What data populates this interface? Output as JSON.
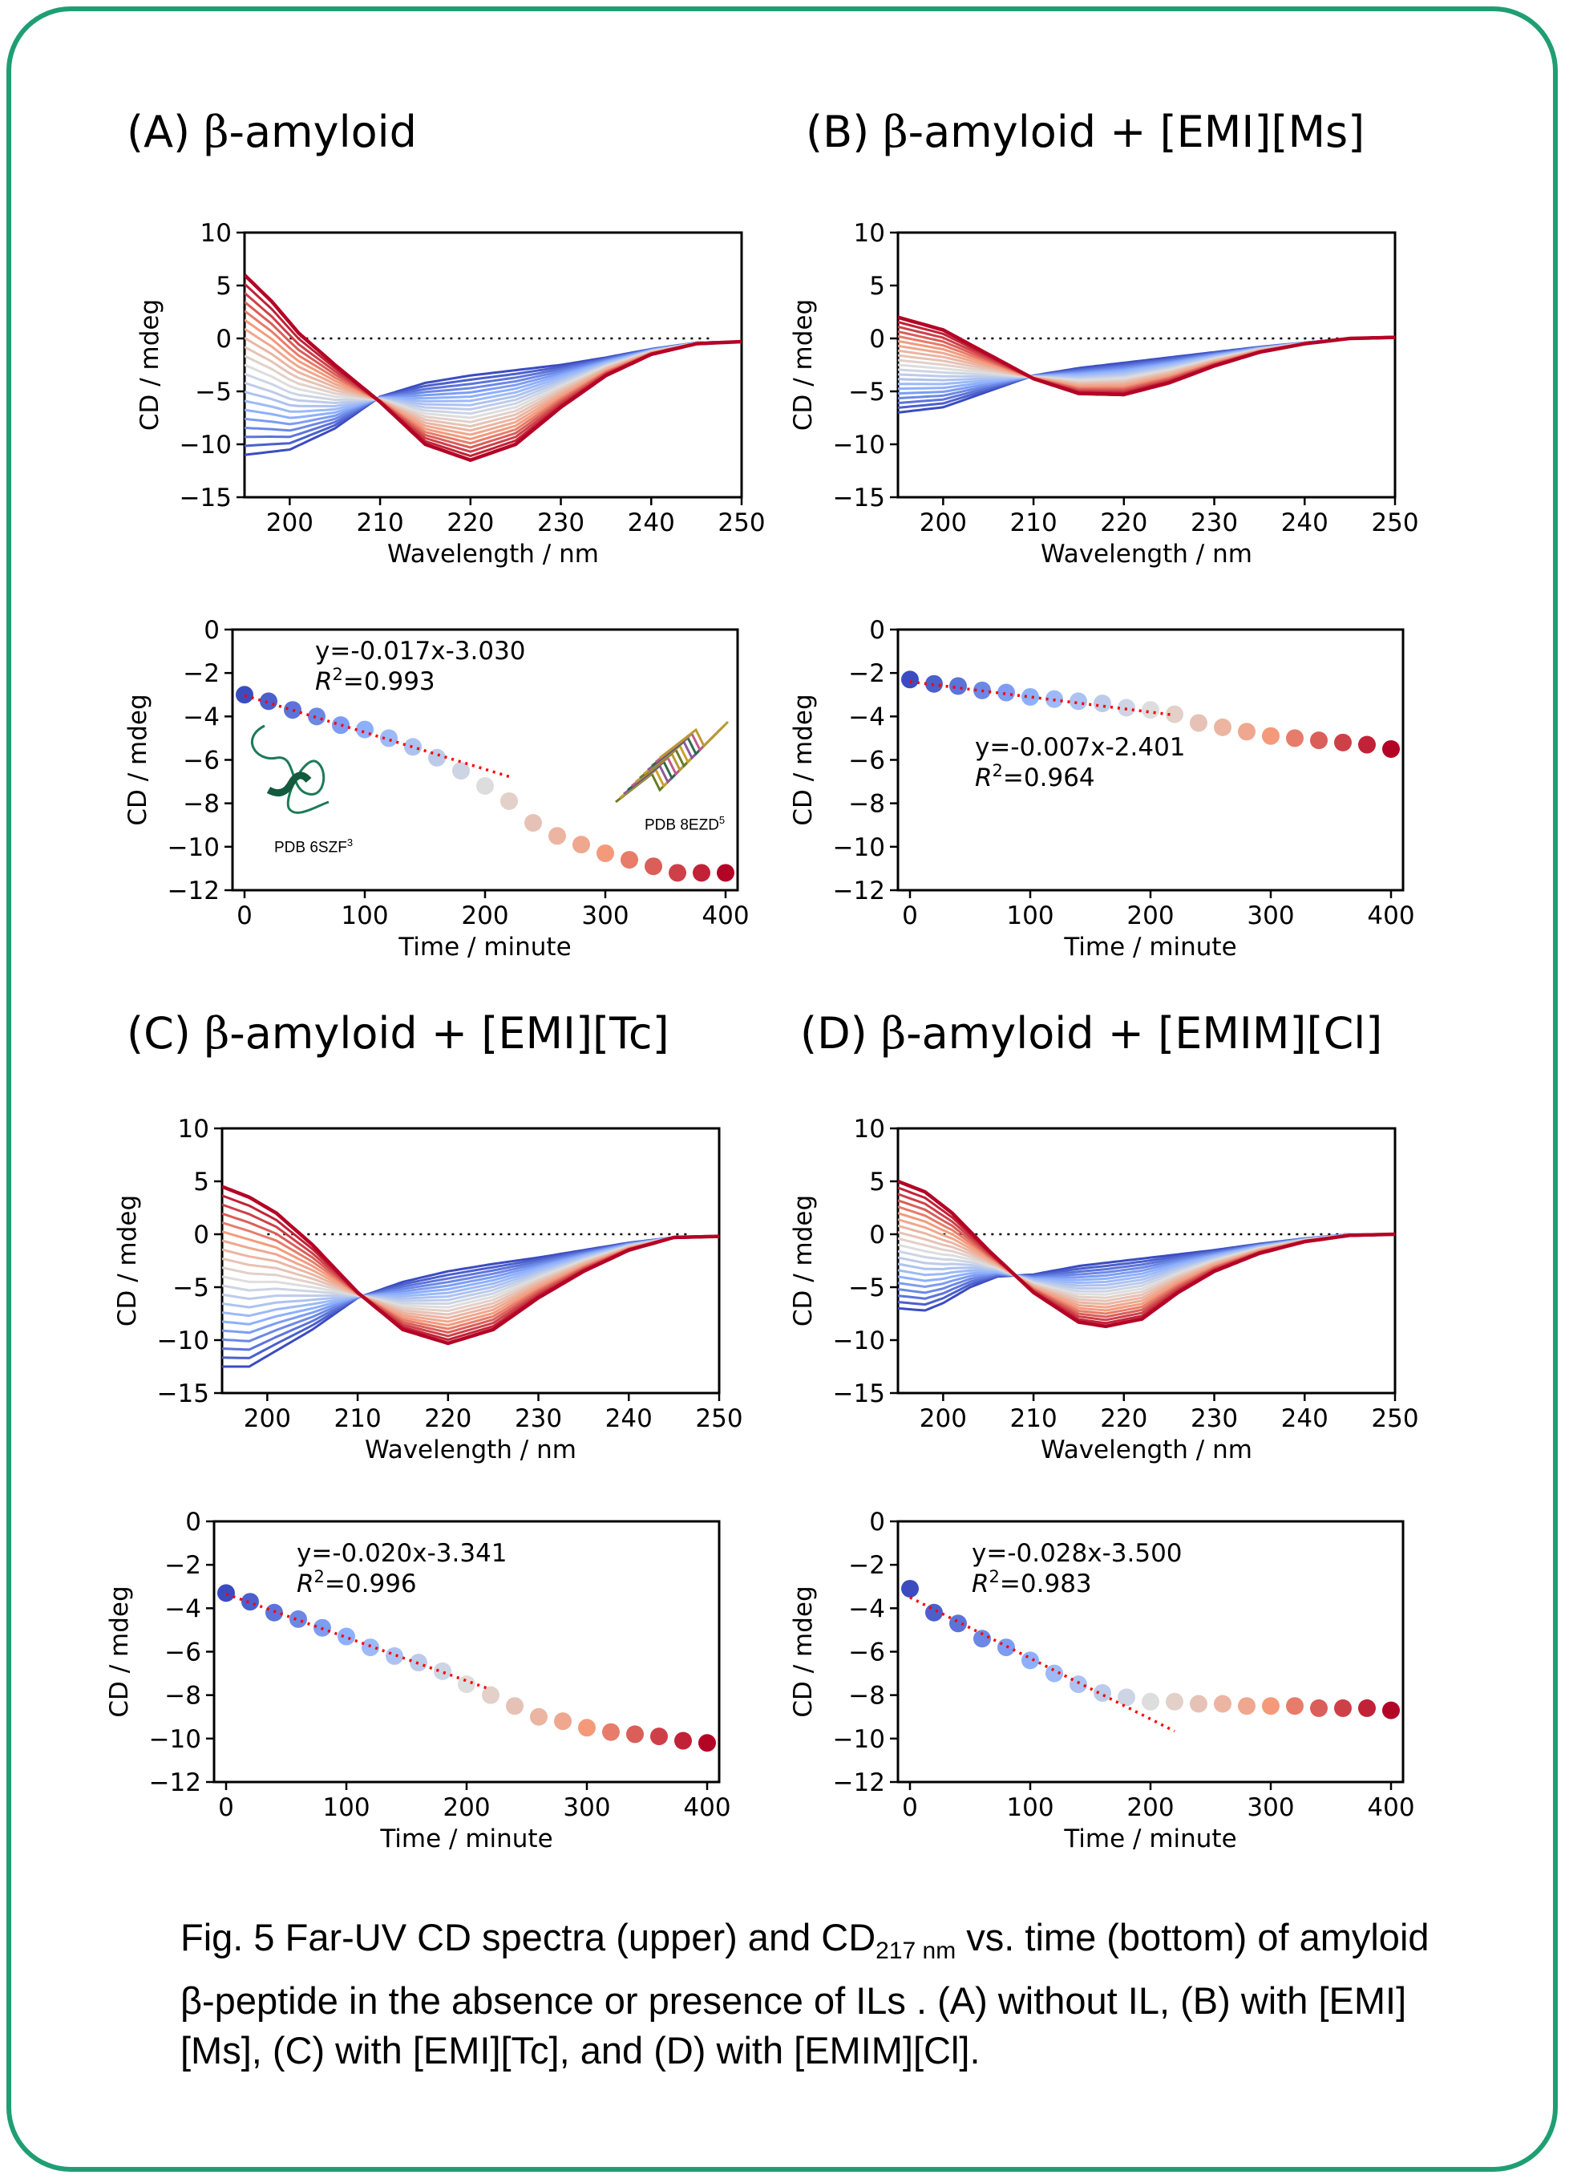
{
  "panels": {
    "A": {
      "letter": "(A) ",
      "beta": "β",
      "rest": "-amyloid"
    },
    "B": {
      "letter": "(B) ",
      "beta": "β",
      "rest": "-amyloid + [EMI][Ms]"
    },
    "C": {
      "letter": "(C) ",
      "beta": "β",
      "rest": "-amyloid + [EMI][Tc]"
    },
    "D": {
      "letter": "(D) ",
      "beta": "β",
      "rest": "-amyloid + [EMIM][Cl]"
    }
  },
  "insets": {
    "left_label": "PDB 6SZF",
    "left_sup": "3",
    "right_label": "PDB 8EZD",
    "right_sup": "5"
  },
  "caption": {
    "part1": "Fig. 5 Far-UV CD spectra (upper) and CD",
    "sub": "217 nm",
    "part2": " vs. time  (bottom) of amyloid β-peptide in the absence or presence of ILs . (A) without IL, (B) with [EMI][Ms], (C) with [EMI][Tc], and (D) with [EMIM][Cl]."
  },
  "colors": {
    "frame": "#1f9e74",
    "blue": "#3b4cc0",
    "white": "#dddddd",
    "red": "#b40426",
    "fit": "#ff0000"
  },
  "chart_data": [
    {
      "id": "A-spectra",
      "type": "line",
      "xlabel": "Wavelength / nm",
      "ylabel": "CD / mdeg",
      "xlim": [
        195,
        250
      ],
      "ylim": [
        -15,
        10
      ],
      "xticks": [
        200,
        210,
        220,
        230,
        240,
        250
      ],
      "yticks": [
        -15,
        -10,
        -5,
        0,
        5,
        10
      ],
      "curves": 21,
      "first": {
        "x": [
          195,
          200,
          205,
          210,
          215,
          220,
          225,
          230,
          235,
          240,
          245,
          250
        ],
        "y": [
          -11.0,
          -10.5,
          -8.5,
          -5.5,
          -4.2,
          -3.5,
          -3.0,
          -2.5,
          -1.8,
          -1.0,
          -0.4,
          -0.3
        ]
      },
      "last": {
        "x": [
          195,
          198,
          201,
          205,
          210,
          215,
          220,
          225,
          230,
          235,
          240,
          245,
          250
        ],
        "y": [
          6.0,
          3.5,
          0.5,
          -2.5,
          -6.0,
          -10.0,
          -11.5,
          -10.0,
          -6.5,
          -3.5,
          -1.5,
          -0.5,
          -0.3
        ]
      }
    },
    {
      "id": "B-spectra",
      "type": "line",
      "xlabel": "Wavelength / nm",
      "ylabel": "CD / mdeg",
      "xlim": [
        195,
        250
      ],
      "ylim": [
        -15,
        10
      ],
      "xticks": [
        200,
        210,
        220,
        230,
        240,
        250
      ],
      "yticks": [
        -15,
        -10,
        -5,
        0,
        5,
        10
      ],
      "curves": 21,
      "first": {
        "x": [
          195,
          200,
          205,
          210,
          215,
          220,
          225,
          230,
          235,
          240,
          245,
          250
        ],
        "y": [
          -7.0,
          -6.5,
          -5.0,
          -3.5,
          -2.8,
          -2.3,
          -1.8,
          -1.3,
          -0.8,
          -0.4,
          0.0,
          0.1
        ]
      },
      "last": {
        "x": [
          195,
          200,
          205,
          210,
          215,
          220,
          225,
          230,
          235,
          240,
          245,
          250
        ],
        "y": [
          2.0,
          0.8,
          -1.5,
          -3.8,
          -5.2,
          -5.3,
          -4.2,
          -2.6,
          -1.3,
          -0.5,
          0.0,
          0.1
        ]
      }
    },
    {
      "id": "C-spectra",
      "type": "line",
      "xlabel": "Wavelength / nm",
      "ylabel": "CD / mdeg",
      "xlim": [
        195,
        250
      ],
      "ylim": [
        -15,
        10
      ],
      "xticks": [
        200,
        210,
        220,
        230,
        240,
        250
      ],
      "yticks": [
        -15,
        -10,
        -5,
        0,
        5,
        10
      ],
      "curves": 21,
      "first": {
        "x": [
          195,
          198,
          201,
          205,
          210,
          215,
          220,
          225,
          230,
          235,
          240,
          245,
          250
        ],
        "y": [
          -12.5,
          -12.5,
          -11.0,
          -9.0,
          -6.0,
          -4.5,
          -3.5,
          -2.8,
          -2.2,
          -1.5,
          -0.8,
          -0.3,
          -0.2
        ]
      },
      "last": {
        "x": [
          195,
          198,
          201,
          205,
          210,
          215,
          220,
          225,
          230,
          235,
          240,
          245,
          250
        ],
        "y": [
          4.5,
          3.5,
          2.0,
          -1.0,
          -5.5,
          -9.0,
          -10.3,
          -9.0,
          -6.0,
          -3.5,
          -1.5,
          -0.3,
          -0.2
        ]
      }
    },
    {
      "id": "D-spectra",
      "type": "line",
      "xlabel": "Wavelength / nm",
      "ylabel": "CD / mdeg",
      "xlim": [
        195,
        250
      ],
      "ylim": [
        -15,
        10
      ],
      "xticks": [
        200,
        210,
        220,
        230,
        240,
        250
      ],
      "yticks": [
        -15,
        -10,
        -5,
        0,
        5,
        10
      ],
      "curves": 21,
      "first": {
        "x": [
          195,
          198,
          200,
          203,
          206,
          210,
          215,
          220,
          225,
          230,
          235,
          240,
          245,
          250
        ],
        "y": [
          -7.0,
          -7.2,
          -6.5,
          -5.0,
          -4.0,
          -3.8,
          -3.0,
          -2.5,
          -2.0,
          -1.5,
          -0.9,
          -0.4,
          0.0,
          0.0
        ]
      },
      "last": {
        "x": [
          195,
          198,
          201,
          205,
          210,
          215,
          218,
          222,
          226,
          230,
          235,
          240,
          245,
          250
        ],
        "y": [
          5.0,
          4.0,
          2.0,
          -1.5,
          -5.5,
          -8.3,
          -8.7,
          -8.0,
          -5.5,
          -3.5,
          -1.8,
          -0.7,
          -0.1,
          0.0
        ]
      }
    },
    {
      "id": "A-time",
      "type": "scatter",
      "xlabel": "Time / minute",
      "ylabel": "CD / mdeg",
      "xlim": [
        -10,
        410
      ],
      "ylim": [
        -12,
        0
      ],
      "xticks": [
        0,
        100,
        200,
        300,
        400
      ],
      "yticks": [
        -12,
        -10,
        -8,
        -6,
        -4,
        -2,
        0
      ],
      "x": [
        0,
        20,
        40,
        60,
        80,
        100,
        120,
        140,
        160,
        180,
        200,
        220,
        240,
        260,
        280,
        300,
        320,
        340,
        360,
        380,
        400
      ],
      "y": [
        -3.0,
        -3.3,
        -3.7,
        -4.0,
        -4.4,
        -4.6,
        -5.0,
        -5.4,
        -5.9,
        -6.5,
        -7.2,
        -7.9,
        -8.9,
        -9.5,
        -9.9,
        -10.3,
        -10.6,
        -10.9,
        -11.2,
        -11.2,
        -11.2
      ],
      "fit": {
        "slope": -0.017,
        "intercept": -3.03,
        "x_range": [
          0,
          220
        ]
      },
      "eq": "y=-0.017x-3.030",
      "r2_label": "R",
      "r2_sup": "2",
      "r2_value": "=0.993"
    },
    {
      "id": "B-time",
      "type": "scatter",
      "xlabel": "Time / minute",
      "ylabel": "CD / mdeg",
      "xlim": [
        -10,
        410
      ],
      "ylim": [
        -12,
        0
      ],
      "xticks": [
        0,
        100,
        200,
        300,
        400
      ],
      "yticks": [
        -12,
        -10,
        -8,
        -6,
        -4,
        -2,
        0
      ],
      "x": [
        0,
        20,
        40,
        60,
        80,
        100,
        120,
        140,
        160,
        180,
        200,
        220,
        240,
        260,
        280,
        300,
        320,
        340,
        360,
        380,
        400
      ],
      "y": [
        -2.3,
        -2.5,
        -2.6,
        -2.8,
        -2.9,
        -3.1,
        -3.2,
        -3.3,
        -3.4,
        -3.6,
        -3.7,
        -3.9,
        -4.3,
        -4.5,
        -4.7,
        -4.9,
        -5.0,
        -5.1,
        -5.2,
        -5.3,
        -5.5
      ],
      "fit": {
        "slope": -0.007,
        "intercept": -2.401,
        "x_range": [
          0,
          220
        ]
      },
      "eq": "y=-0.007x-2.401",
      "r2_label": "R",
      "r2_sup": "2",
      "r2_value": "=0.964"
    },
    {
      "id": "C-time",
      "type": "scatter",
      "xlabel": "Time / minute",
      "ylabel": "CD / mdeg",
      "xlim": [
        -10,
        410
      ],
      "ylim": [
        -12,
        0
      ],
      "xticks": [
        0,
        100,
        200,
        300,
        400
      ],
      "yticks": [
        -12,
        -10,
        -8,
        -6,
        -4,
        -2,
        0
      ],
      "x": [
        0,
        20,
        40,
        60,
        80,
        100,
        120,
        140,
        160,
        180,
        200,
        220,
        240,
        260,
        280,
        300,
        320,
        340,
        360,
        380,
        400
      ],
      "y": [
        -3.3,
        -3.7,
        -4.2,
        -4.5,
        -4.9,
        -5.3,
        -5.8,
        -6.2,
        -6.5,
        -6.9,
        -7.5,
        -8.0,
        -8.5,
        -9.0,
        -9.2,
        -9.5,
        -9.7,
        -9.8,
        -9.9,
        -10.1,
        -10.2
      ],
      "fit": {
        "slope": -0.02,
        "intercept": -3.341,
        "x_range": [
          0,
          220
        ]
      },
      "eq": "y=-0.020x-3.341",
      "r2_label": "R",
      "r2_sup": "2",
      "r2_value": "=0.996"
    },
    {
      "id": "D-time",
      "type": "scatter",
      "xlabel": "Time / minute",
      "ylabel": "CD / mdeg",
      "xlim": [
        -10,
        410
      ],
      "ylim": [
        -12,
        0
      ],
      "xticks": [
        0,
        100,
        200,
        300,
        400
      ],
      "yticks": [
        -12,
        -10,
        -8,
        -6,
        -4,
        -2,
        0
      ],
      "x": [
        0,
        20,
        40,
        60,
        80,
        100,
        120,
        140,
        160,
        180,
        200,
        220,
        240,
        260,
        280,
        300,
        320,
        340,
        360,
        380,
        400
      ],
      "y": [
        -3.1,
        -4.2,
        -4.7,
        -5.4,
        -5.8,
        -6.4,
        -7.0,
        -7.5,
        -7.9,
        -8.1,
        -8.3,
        -8.3,
        -8.4,
        -8.4,
        -8.5,
        -8.5,
        -8.5,
        -8.6,
        -8.6,
        -8.6,
        -8.7
      ],
      "fit": {
        "slope": -0.028,
        "intercept": -3.5,
        "x_range": [
          0,
          220
        ]
      },
      "eq": "y=-0.028x-3.500",
      "r2_label": "R",
      "r2_sup": "2",
      "r2_value": "=0.983"
    }
  ]
}
